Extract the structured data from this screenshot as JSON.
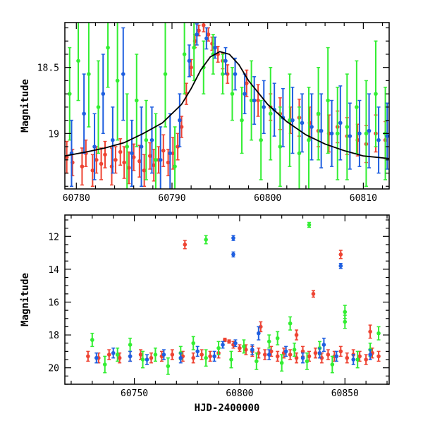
{
  "chart_data": [
    {
      "type": "scatter",
      "panel": "top",
      "xlabel": "",
      "ylabel": "Magnitude",
      "xlim": [
        60778.8,
        60812.7
      ],
      "ylim": [
        19.42,
        18.16
      ],
      "y_inverted": true,
      "x_ticks": [
        60780,
        60790,
        60800,
        60810
      ],
      "x_tick_labels": [
        "60780",
        "60790",
        "60800",
        "60810"
      ],
      "y_ticks": [
        18.5,
        19
      ],
      "y_tick_labels": [
        "18.5",
        "19"
      ],
      "grid": false,
      "legend": "none",
      "series": [
        {
          "color": "#ee4433",
          "error_bars": true,
          "x": [
            60779.0,
            60779.6,
            60780.6,
            60781.0,
            60781.7,
            60782.1,
            60782.6,
            60783.0,
            60783.7,
            60784.1,
            60784.6,
            60785.0,
            60785.5,
            60786.0,
            60786.6,
            60787.1,
            60787.7,
            60788.1,
            60788.6,
            60789.1,
            60789.6,
            60790.1,
            60790.6,
            60791.0,
            60791.5,
            60792.0,
            60792.4,
            60792.8,
            60793.3,
            60793.8,
            60794.2,
            60794.8,
            60795.3,
            60795.8,
            60797.8,
            60799.0,
            60800.3,
            60801.3,
            60802.4,
            60803.3,
            60804.4,
            60805.3,
            60806.4,
            60807.3,
            60808.3,
            60809.4,
            60810.3,
            60811.3,
            60812.3
          ],
          "y": [
            19.18,
            19.22,
            19.25,
            19.15,
            19.28,
            19.2,
            19.23,
            19.16,
            19.25,
            19.2,
            19.14,
            19.22,
            19.26,
            19.18,
            19.21,
            19.28,
            19.17,
            19.24,
            19.2,
            19.13,
            19.22,
            19.15,
            19.1,
            18.95,
            18.7,
            18.5,
            18.3,
            18.22,
            18.18,
            18.25,
            18.32,
            18.4,
            18.45,
            18.55,
            18.62,
            18.75,
            18.8,
            18.85,
            18.9,
            18.88,
            18.92,
            18.98,
            19.0,
            18.95,
            19.02,
            19.05,
            19.08,
            19.0,
            19.05
          ],
          "yerr": [
            0.12,
            0.1,
            0.14,
            0.1,
            0.12,
            0.1,
            0.12,
            0.1,
            0.14,
            0.1,
            0.1,
            0.12,
            0.12,
            0.1,
            0.12,
            0.12,
            0.1,
            0.12,
            0.1,
            0.12,
            0.1,
            0.12,
            0.1,
            0.08,
            0.08,
            0.06,
            0.05,
            0.04,
            0.05,
            0.05,
            0.05,
            0.06,
            0.06,
            0.07,
            0.1,
            0.12,
            0.1,
            0.12,
            0.1,
            0.14,
            0.12,
            0.12,
            0.14,
            0.12,
            0.14,
            0.12,
            0.14,
            0.14,
            0.14
          ]
        },
        {
          "color": "#33ee33",
          "error_bars": true,
          "x": [
            60779.3,
            60780.2,
            60781.3,
            60782.3,
            60783.3,
            60784.3,
            60785.3,
            60786.3,
            60787.3,
            60788.3,
            60789.3,
            60790.3,
            60791.3,
            60792.3,
            60793.3,
            60794.3,
            60795.3,
            60796.3,
            60797.3,
            60798.3,
            60799.3,
            60800.3,
            60801.3,
            60802.3,
            60803.3,
            60804.3,
            60805.3,
            60806.3,
            60807.3,
            60808.3,
            60809.3,
            60810.3,
            60811.3,
            60812.3
          ],
          "y": [
            18.7,
            18.45,
            18.55,
            18.8,
            18.35,
            18.6,
            19.1,
            18.75,
            19.05,
            19.2,
            18.55,
            19.25,
            18.4,
            18.35,
            18.5,
            18.4,
            18.55,
            18.7,
            18.9,
            18.75,
            19.05,
            18.85,
            19.1,
            18.9,
            19.15,
            19.05,
            18.85,
            18.75,
            19.0,
            18.95,
            18.8,
            19.0,
            18.7,
            19.0
          ],
          "yerr": [
            0.35,
            0.3,
            0.4,
            0.35,
            0.3,
            0.45,
            0.4,
            0.35,
            0.3,
            0.35,
            0.4,
            0.3,
            0.3,
            0.25,
            0.2,
            0.15,
            0.15,
            0.2,
            0.25,
            0.3,
            0.3,
            0.35,
            0.3,
            0.35,
            0.35,
            0.4,
            0.35,
            0.4,
            0.35,
            0.4,
            0.35,
            0.4,
            0.4,
            0.35
          ]
        },
        {
          "color": "#1f5fe0",
          "error_bars": true,
          "x": [
            60779.5,
            60780.8,
            60781.9,
            60782.8,
            60783.8,
            60784.9,
            60785.8,
            60786.8,
            60787.9,
            60788.8,
            60789.8,
            60790.8,
            60791.8,
            60792.6,
            60793.6,
            60794.5,
            60795.6,
            60796.6,
            60797.6,
            60798.6,
            60799.6,
            60800.7,
            60801.6,
            60802.6,
            60803.6,
            60804.6,
            60805.6,
            60806.7,
            60807.6,
            60808.6,
            60809.6,
            60810.6,
            60811.6,
            60812.5
          ],
          "y": [
            19.15,
            18.85,
            19.1,
            18.7,
            19.05,
            18.55,
            19.15,
            19.1,
            19.05,
            19.2,
            19.15,
            18.9,
            18.45,
            18.25,
            18.28,
            18.35,
            18.45,
            18.55,
            18.7,
            18.75,
            18.8,
            18.82,
            18.88,
            18.9,
            18.92,
            18.95,
            18.98,
            19.0,
            18.92,
            19.02,
            19.0,
            18.98,
            19.05,
            19.02
          ],
          "yerr": [
            0.25,
            0.3,
            0.25,
            0.3,
            0.25,
            0.35,
            0.25,
            0.3,
            0.25,
            0.25,
            0.3,
            0.2,
            0.12,
            0.08,
            0.08,
            0.08,
            0.1,
            0.12,
            0.15,
            0.18,
            0.2,
            0.2,
            0.22,
            0.25,
            0.22,
            0.25,
            0.28,
            0.25,
            0.28,
            0.25,
            0.25,
            0.28,
            0.25,
            0.25
          ]
        }
      ],
      "model_curve": {
        "color": "#000000",
        "x": [
          60778.8,
          60781,
          60783,
          60785,
          60787,
          60789,
          60791,
          60792,
          60793,
          60794,
          60795,
          60796,
          60797,
          60798,
          60800,
          60802,
          60804,
          60806,
          60808,
          60810,
          60812.7
        ],
        "y": [
          19.17,
          19.14,
          19.11,
          19.07,
          19.0,
          18.92,
          18.78,
          18.66,
          18.52,
          18.42,
          18.38,
          18.4,
          18.48,
          18.6,
          18.78,
          18.91,
          19.01,
          19.08,
          19.13,
          19.17,
          19.19
        ]
      }
    },
    {
      "type": "scatter",
      "panel": "bottom",
      "xlabel": "HJD-2400000",
      "ylabel": "Magnitude",
      "xlim": [
        60717,
        60871
      ],
      "ylim": [
        21.0,
        10.7
      ],
      "y_inverted": true,
      "x_ticks": [
        60750,
        60800,
        60850
      ],
      "x_tick_labels": [
        "60750",
        "60800",
        "60850"
      ],
      "y_ticks": [
        12,
        14,
        16,
        18,
        20
      ],
      "y_tick_labels": [
        "12",
        "14",
        "16",
        "18",
        "20"
      ],
      "grid": false,
      "legend": "none",
      "series": [
        {
          "color": "#ee4433",
          "error_bars": true,
          "x": [
            60728,
            60733,
            60738,
            60743,
            60748,
            60753,
            60758,
            60763,
            60768,
            60773,
            60778,
            60782,
            60786,
            60790,
            60793,
            60795,
            60797,
            60800,
            60803,
            60806,
            60809,
            60812,
            60815,
            60818,
            60821,
            60824,
            60827,
            60830,
            60833,
            60836,
            60839,
            60842,
            60845,
            60848,
            60851,
            60854,
            60857,
            60860,
            60863,
            60866,
            60774,
            60835,
            60848,
            60827,
            60810,
            60862
          ],
          "y": [
            19.3,
            19.4,
            19.2,
            19.4,
            19.3,
            19.2,
            19.4,
            19.3,
            19.2,
            19.3,
            19.4,
            19.2,
            19.3,
            19.1,
            18.3,
            18.4,
            18.6,
            18.8,
            18.9,
            19.0,
            19.1,
            19.2,
            19.0,
            19.3,
            19.1,
            19.2,
            19.4,
            19.0,
            19.3,
            19.1,
            19.4,
            19.2,
            19.3,
            19.0,
            19.4,
            19.2,
            19.3,
            19.5,
            19.1,
            19.3,
            12.5,
            15.5,
            13.1,
            18.0,
            17.5,
            17.8
          ],
          "yerr": [
            0.3,
            0.3,
            0.3,
            0.3,
            0.3,
            0.3,
            0.3,
            0.3,
            0.3,
            0.3,
            0.3,
            0.3,
            0.3,
            0.3,
            0.1,
            0.1,
            0.2,
            0.2,
            0.3,
            0.3,
            0.3,
            0.3,
            0.3,
            0.3,
            0.3,
            0.3,
            0.3,
            0.3,
            0.3,
            0.3,
            0.3,
            0.3,
            0.3,
            0.3,
            0.3,
            0.3,
            0.3,
            0.3,
            0.3,
            0.3,
            0.25,
            0.2,
            0.25,
            0.3,
            0.3,
            0.4
          ]
        },
        {
          "color": "#33ee33",
          "error_bars": true,
          "x": [
            60730,
            60736,
            60742,
            60748,
            60754,
            60760,
            60766,
            60772,
            60778,
            60784,
            60790,
            60796,
            60802,
            60808,
            60814,
            60820,
            60826,
            60832,
            60838,
            60844,
            60850,
            60856,
            60862,
            60866,
            60784,
            60833,
            60824,
            60818,
            60850
          ],
          "y": [
            18.3,
            19.8,
            19.2,
            18.6,
            19.5,
            19.2,
            19.9,
            19.1,
            18.5,
            19.4,
            18.8,
            19.5,
            18.7,
            19.6,
            18.4,
            19.7,
            18.9,
            19.6,
            18.8,
            19.8,
            17.2,
            19.5,
            18.9,
            17.9,
            12.2,
            11.3,
            17.3,
            18.2,
            16.6
          ],
          "yerr": [
            0.4,
            0.5,
            0.4,
            0.4,
            0.5,
            0.4,
            0.5,
            0.4,
            0.4,
            0.5,
            0.4,
            0.5,
            0.4,
            0.5,
            0.4,
            0.5,
            0.4,
            0.5,
            0.4,
            0.5,
            0.4,
            0.5,
            0.4,
            0.4,
            0.25,
            0.15,
            0.4,
            0.4,
            0.4
          ]
        },
        {
          "color": "#1f5fe0",
          "error_bars": true,
          "x": [
            60732,
            60740,
            60748,
            60756,
            60764,
            60772,
            60780,
            60788,
            60792,
            60798,
            60806,
            60814,
            60822,
            60830,
            60838,
            60846,
            60854,
            60862,
            60797,
            60797,
            60848,
            60809,
            60840
          ],
          "y": [
            19.4,
            19.1,
            19.3,
            19.5,
            19.2,
            19.4,
            19.0,
            19.3,
            18.6,
            18.5,
            18.9,
            19.2,
            19.0,
            19.4,
            19.1,
            19.3,
            19.5,
            19.2,
            12.1,
            13.1,
            13.8,
            17.9,
            18.6
          ],
          "yerr": [
            0.3,
            0.3,
            0.3,
            0.3,
            0.3,
            0.3,
            0.3,
            0.3,
            0.2,
            0.2,
            0.3,
            0.3,
            0.3,
            0.3,
            0.3,
            0.3,
            0.3,
            0.3,
            0.15,
            0.15,
            0.15,
            0.4,
            0.4
          ]
        }
      ]
    }
  ]
}
